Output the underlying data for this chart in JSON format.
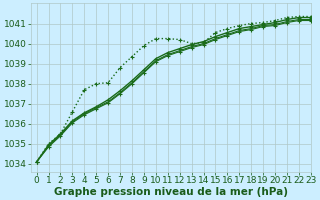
{
  "title": "Graphe pression niveau de la mer (hPa)",
  "background_color": "#cceeff",
  "grid_color": "#b0c8c8",
  "text_color": "#1a5c1a",
  "line_color": "#1a6b1a",
  "xlim": [
    -0.5,
    23
  ],
  "ylim": [
    1033.6,
    1042.0
  ],
  "xtick_labels": [
    "0",
    "1",
    "2",
    "3",
    "4",
    "5",
    "6",
    "7",
    "8",
    "9",
    "10",
    "11",
    "12",
    "13",
    "14",
    "15",
    "16",
    "17",
    "18",
    "19",
    "20",
    "21",
    "22",
    "23"
  ],
  "xticks": [
    0,
    1,
    2,
    3,
    4,
    5,
    6,
    7,
    8,
    9,
    10,
    11,
    12,
    13,
    14,
    15,
    16,
    17,
    18,
    19,
    20,
    21,
    22,
    23
  ],
  "yticks": [
    1034,
    1035,
    1036,
    1037,
    1038,
    1039,
    1040,
    1041
  ],
  "series": [
    [
      1034.1,
      1035.0,
      1035.5,
      1036.6,
      1037.7,
      1038.0,
      1038.05,
      1038.8,
      1039.35,
      1039.9,
      1040.25,
      1040.25,
      1040.2,
      1040.0,
      1040.05,
      1040.55,
      1040.75,
      1040.9,
      1041.0,
      1041.05,
      1041.15,
      1041.3,
      1041.35,
      1041.35
    ],
    [
      1034.1,
      1034.95,
      1035.5,
      1036.15,
      1036.55,
      1036.85,
      1037.2,
      1037.65,
      1038.15,
      1038.7,
      1039.25,
      1039.55,
      1039.75,
      1039.95,
      1040.1,
      1040.35,
      1040.55,
      1040.75,
      1040.85,
      1040.95,
      1041.05,
      1041.2,
      1041.3,
      1041.3
    ],
    [
      1034.1,
      1034.9,
      1035.45,
      1036.1,
      1036.5,
      1036.8,
      1037.1,
      1037.55,
      1038.05,
      1038.6,
      1039.15,
      1039.45,
      1039.65,
      1039.85,
      1040.0,
      1040.25,
      1040.45,
      1040.65,
      1040.75,
      1040.9,
      1040.95,
      1041.1,
      1041.2,
      1041.2
    ],
    [
      1034.1,
      1034.85,
      1035.4,
      1036.05,
      1036.45,
      1036.75,
      1037.05,
      1037.5,
      1038.0,
      1038.55,
      1039.1,
      1039.4,
      1039.6,
      1039.8,
      1039.95,
      1040.2,
      1040.4,
      1040.6,
      1040.7,
      1040.85,
      1040.9,
      1041.05,
      1041.15,
      1041.15
    ]
  ],
  "xlabel_fontsize": 7.5,
  "tick_fontsize": 6.5
}
